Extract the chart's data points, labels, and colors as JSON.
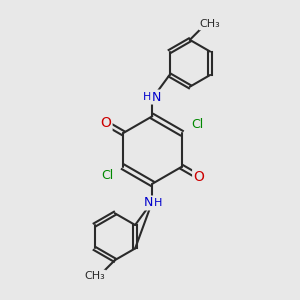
{
  "background_color": "#e8e8e8",
  "bond_color": "#2a2a2a",
  "bond_width": 1.5,
  "atom_colors": {
    "O": "#cc0000",
    "N": "#0000cc",
    "Cl": "#008800",
    "C": "#2a2a2a",
    "H": "#555555"
  }
}
